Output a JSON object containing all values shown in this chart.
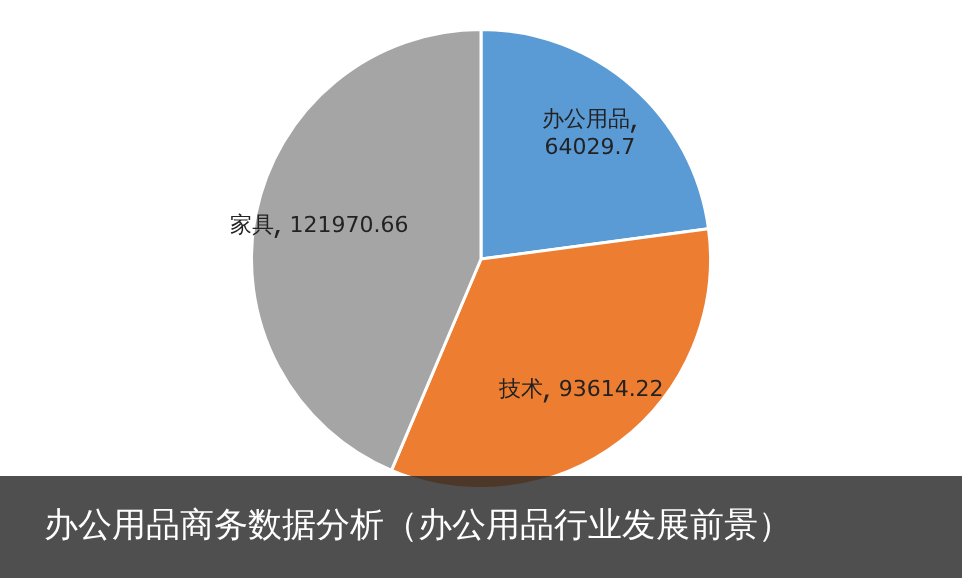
{
  "chart_data": {
    "type": "pie",
    "title": "办公用品商务数据分析（办公用品行业发展前景）",
    "categories": [
      "办公用品",
      "技术",
      "家具"
    ],
    "values": [
      64029.7,
      93614.22,
      121970.66
    ],
    "colors": [
      "#5b9bd5",
      "#ed7d31",
      "#a5a5a5"
    ],
    "data_labels": true,
    "legend": false
  }
}
